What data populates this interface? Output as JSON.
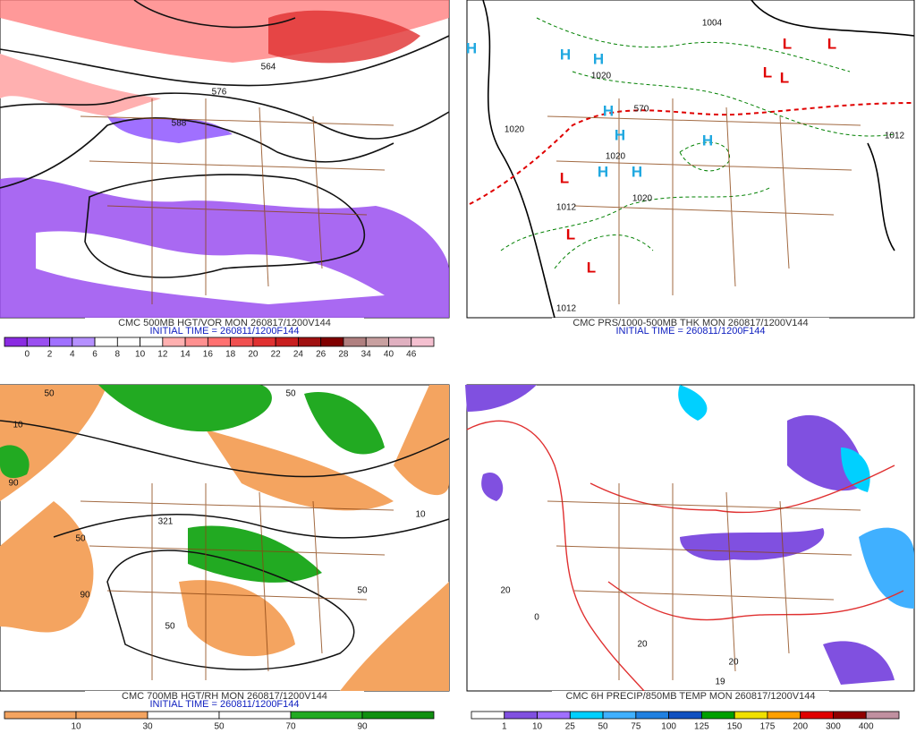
{
  "panels": [
    {
      "caption": "CMC 500MB HGT/VOR MON 260817/1200V144",
      "initial_time": "INITIAL TIME = 260811/1200F144",
      "colorbar": {
        "colors": [
          "#8a2be2",
          "#9a4ff0",
          "#a070ff",
          "#b590ff",
          "#ffffff",
          "#ffffff",
          "#ffffff",
          "#ffb0b0",
          "#ff9090",
          "#ff7070",
          "#f05050",
          "#e03030",
          "#c81e1e",
          "#a01010",
          "#800000",
          "#b08080",
          "#c8a0a0",
          "#e0b0c0",
          "#f4c0d0"
        ],
        "labels": [
          "0",
          "2",
          "4",
          "6",
          "8",
          "10",
          "12",
          "14",
          "16",
          "18",
          "20",
          "22",
          "24",
          "26",
          "28",
          "34",
          "40",
          "46"
        ]
      },
      "map_labels": [
        "564",
        "576",
        "588"
      ]
    },
    {
      "caption": "CMC PRS/1000-500MB THK MON 260817/1200V144",
      "initial_time": "INITIAL TIME = 260811/1200F144",
      "map_labels": [
        "H",
        "H",
        "H",
        "H",
        "H",
        "H",
        "H",
        "H",
        "L",
        "L",
        "L",
        "L",
        "L",
        "L",
        "L",
        "1020",
        "1020",
        "1020",
        "1020",
        "1004",
        "1012",
        "1012",
        "1012",
        "570"
      ]
    },
    {
      "caption": "CMC 700MB HGT/RH MON 260817/1200V144",
      "initial_time": "INITIAL TIME = 260811/1200F144",
      "colorbar": {
        "colors": [
          "#f4a460",
          "#f4a460",
          "#ffffff",
          "#ffffff",
          "#22aa22",
          "#109010"
        ],
        "labels": [
          "10",
          "30",
          "50",
          "70",
          "90"
        ]
      },
      "map_labels": [
        "50",
        "50",
        "10",
        "90",
        "321",
        "50",
        "50",
        "90",
        "10",
        "50"
      ]
    },
    {
      "caption": "CMC 6H PRECIP/850MB TEMP MON 260817/1200V144",
      "colorbar": {
        "colors": [
          "#ffffff",
          "#8050e0",
          "#a070ff",
          "#00d0ff",
          "#40b0ff",
          "#2080e0",
          "#1050c0",
          "#00a000",
          "#f0e000",
          "#ffa000",
          "#e00000",
          "#900000",
          "#c090a0"
        ],
        "labels": [
          "1",
          "10",
          "25",
          "50",
          "75",
          "100",
          "125",
          "150",
          "175",
          "200",
          "300",
          "400"
        ]
      },
      "map_labels": [
        "0",
        "20",
        "20",
        "20",
        "19"
      ]
    }
  ]
}
